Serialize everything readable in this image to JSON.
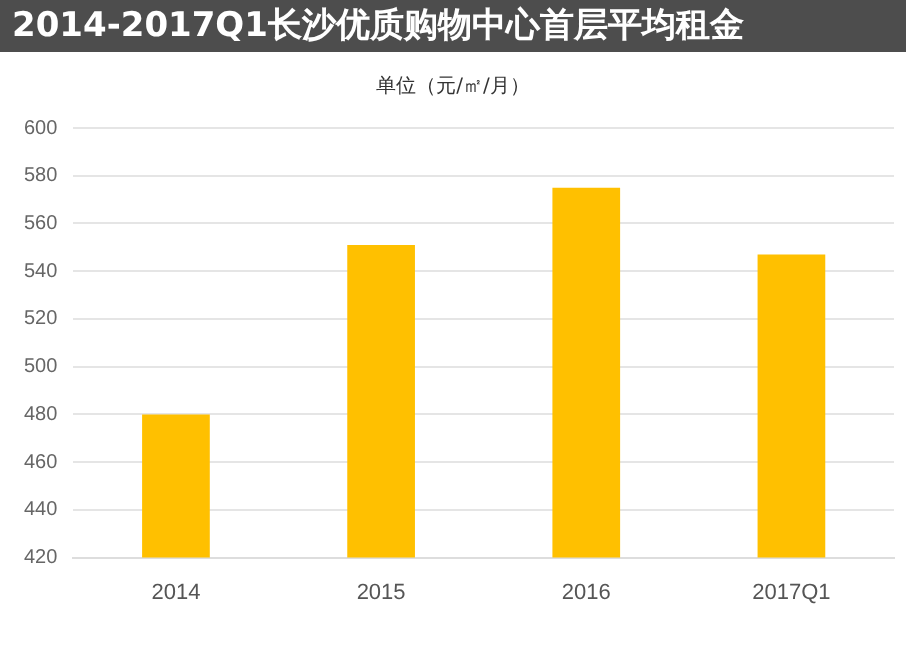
{
  "chart_data": {
    "type": "bar",
    "title": "2014-2017Q1长沙优质购物中心首层平均租金",
    "subtitle": "单位（元/㎡/月）",
    "categories": [
      "2014",
      "2015",
      "2016",
      "2017Q1"
    ],
    "values": [
      480,
      551,
      575,
      547
    ],
    "color": "#ffc000",
    "ylim": [
      420,
      600
    ],
    "yticks": [
      420,
      440,
      460,
      480,
      500,
      520,
      540,
      560,
      580,
      600
    ],
    "grid": "y"
  }
}
